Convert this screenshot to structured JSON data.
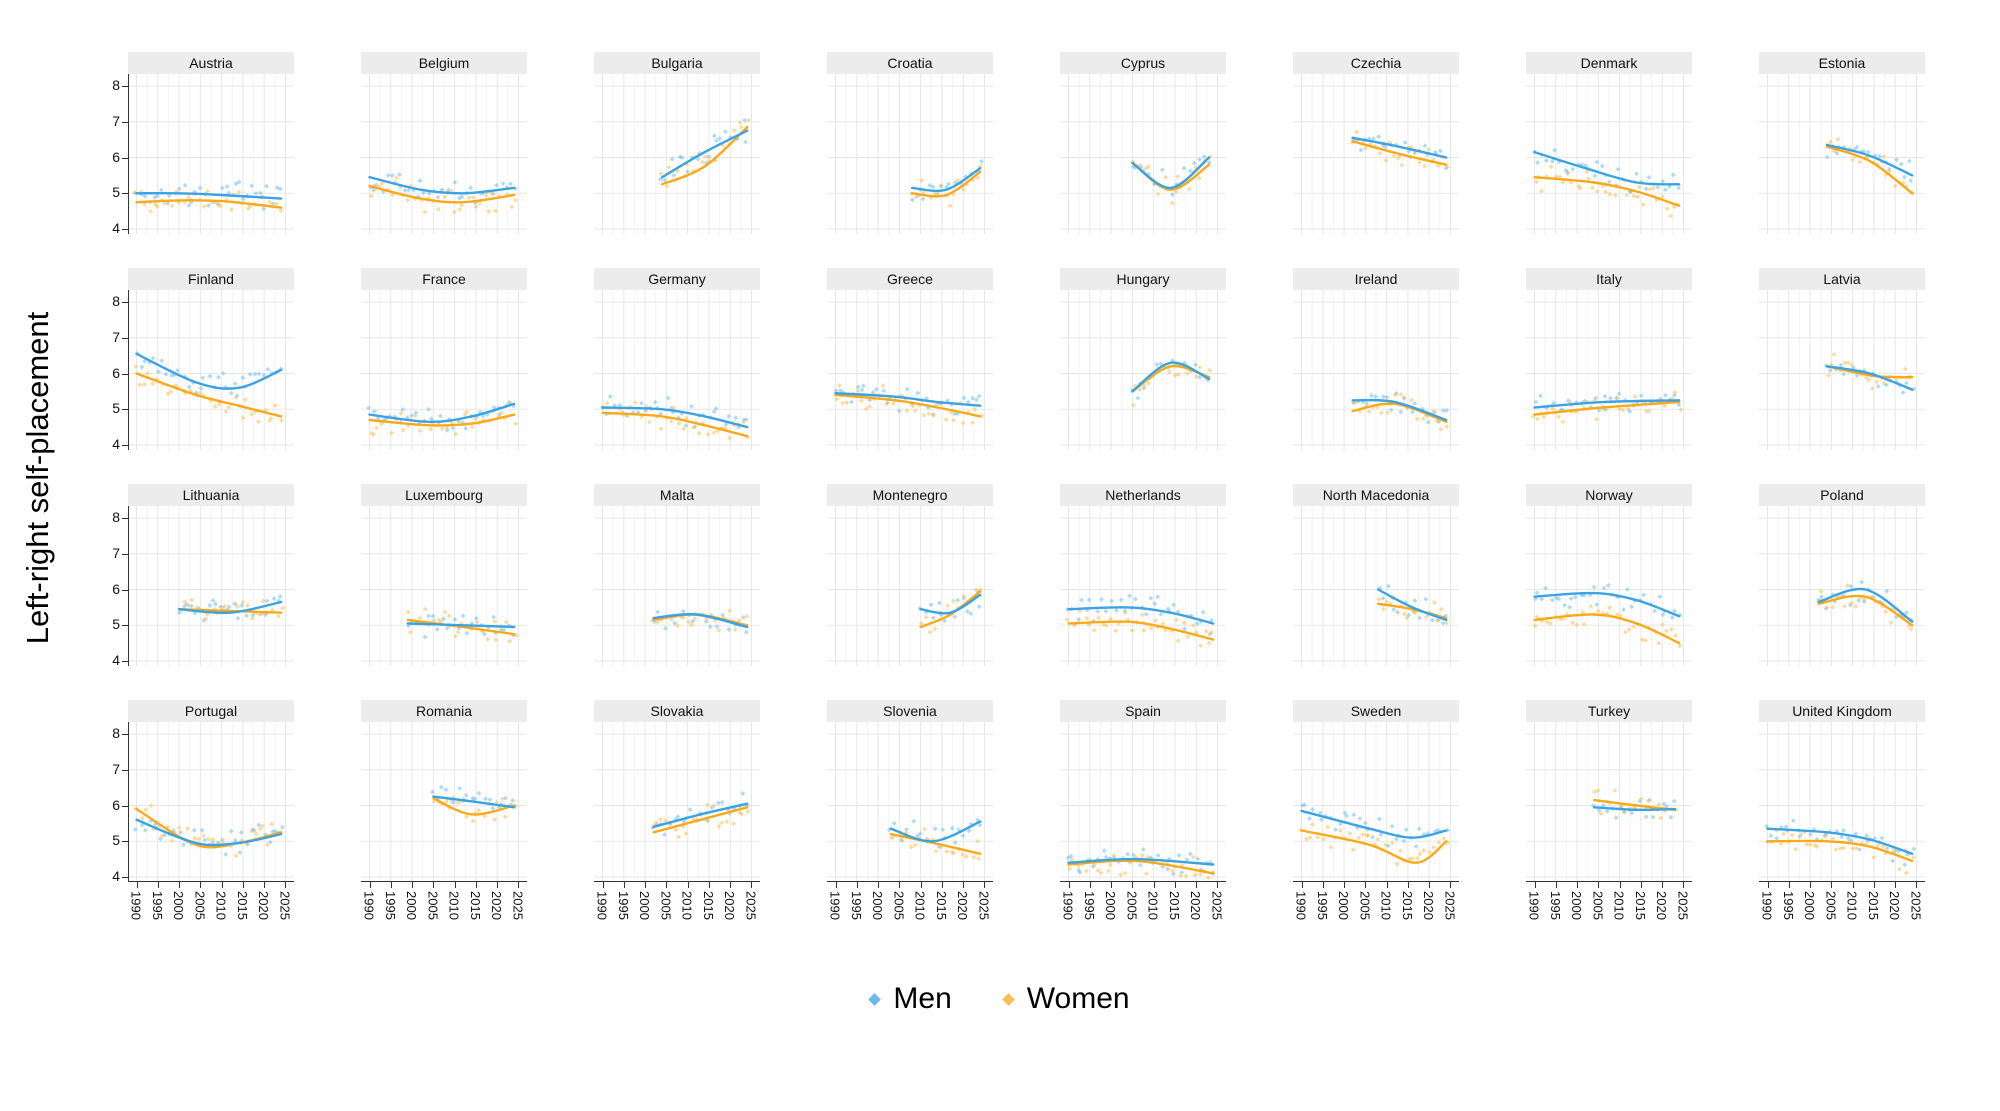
{
  "chart_data": {
    "type": "scatter",
    "smoother": "loess",
    "title": "",
    "xlabel": "",
    "ylabel": "Left-right self-placement",
    "ylim": [
      4,
      8
    ],
    "xlim": [
      1990,
      2025
    ],
    "y_ticks": [
      8,
      7,
      6,
      5,
      4
    ],
    "x_ticks": [
      1990,
      1995,
      2000,
      2005,
      2010,
      2015,
      2020,
      2025
    ],
    "grid": "on",
    "legend_position": "bottom",
    "legend": {
      "men": {
        "label": "Men",
        "color": "#3ba3e3"
      },
      "women": {
        "label": "Women",
        "color": "#fba919"
      }
    },
    "colors": {
      "men_line": "#3ba3e3",
      "women_line": "#fba919",
      "men_point": "#6cbcec",
      "women_point": "#fcbc4d",
      "grid_major": "#e7e7e7",
      "grid_minor": "#f3f3f3",
      "strip_bg": "#ececec",
      "axis": "#333333"
    },
    "facets": [
      {
        "country": "Austria",
        "x_start": 1990,
        "x_end": 2024,
        "men": [
          [
            1990,
            5.0
          ],
          [
            2000,
            5.0
          ],
          [
            2010,
            4.95
          ],
          [
            2024,
            4.85
          ]
        ],
        "women": [
          [
            1990,
            4.75
          ],
          [
            2000,
            4.8
          ],
          [
            2010,
            4.78
          ],
          [
            2024,
            4.6
          ]
        ]
      },
      {
        "country": "Belgium",
        "x_start": 1990,
        "x_end": 2024,
        "men": [
          [
            1990,
            5.45
          ],
          [
            2002,
            5.1
          ],
          [
            2012,
            5.0
          ],
          [
            2024,
            5.15
          ]
        ],
        "women": [
          [
            1990,
            5.2
          ],
          [
            2002,
            4.85
          ],
          [
            2012,
            4.75
          ],
          [
            2024,
            4.95
          ]
        ]
      },
      {
        "country": "Bulgaria",
        "x_start": 2004,
        "x_end": 2024,
        "men": [
          [
            2004,
            5.45
          ],
          [
            2014,
            6.15
          ],
          [
            2024,
            6.75
          ]
        ],
        "women": [
          [
            2004,
            5.25
          ],
          [
            2014,
            5.75
          ],
          [
            2024,
            6.85
          ]
        ]
      },
      {
        "country": "Croatia",
        "x_start": 2008,
        "x_end": 2024,
        "men": [
          [
            2008,
            5.15
          ],
          [
            2016,
            5.1
          ],
          [
            2024,
            5.7
          ]
        ],
        "women": [
          [
            2008,
            5.0
          ],
          [
            2016,
            4.95
          ],
          [
            2024,
            5.6
          ]
        ]
      },
      {
        "country": "Cyprus",
        "x_start": 2005,
        "x_end": 2023,
        "men": [
          [
            2005,
            5.85
          ],
          [
            2014,
            5.15
          ],
          [
            2023,
            6.0
          ]
        ],
        "women": [
          [
            2005,
            5.85
          ],
          [
            2014,
            5.1
          ],
          [
            2023,
            5.8
          ]
        ]
      },
      {
        "country": "Czechia",
        "x_start": 2002,
        "x_end": 2024,
        "men": [
          [
            2002,
            6.55
          ],
          [
            2013,
            6.3
          ],
          [
            2024,
            6.0
          ]
        ],
        "women": [
          [
            2002,
            6.45
          ],
          [
            2013,
            6.1
          ],
          [
            2024,
            5.8
          ]
        ]
      },
      {
        "country": "Denmark",
        "x_start": 1990,
        "x_end": 2024,
        "men": [
          [
            1990,
            6.15
          ],
          [
            2002,
            5.7
          ],
          [
            2014,
            5.3
          ],
          [
            2024,
            5.25
          ]
        ],
        "women": [
          [
            1990,
            5.45
          ],
          [
            2004,
            5.3
          ],
          [
            2014,
            5.05
          ],
          [
            2024,
            4.65
          ]
        ]
      },
      {
        "country": "Estonia",
        "x_start": 2004,
        "x_end": 2024,
        "men": [
          [
            2004,
            6.35
          ],
          [
            2014,
            6.05
          ],
          [
            2024,
            5.5
          ]
        ],
        "women": [
          [
            2004,
            6.3
          ],
          [
            2014,
            5.9
          ],
          [
            2024,
            5.0
          ]
        ]
      },
      {
        "country": "Finland",
        "x_start": 1990,
        "x_end": 2024,
        "men": [
          [
            1990,
            6.55
          ],
          [
            2004,
            5.75
          ],
          [
            2014,
            5.6
          ],
          [
            2024,
            6.1
          ]
        ],
        "women": [
          [
            1990,
            6.0
          ],
          [
            2004,
            5.4
          ],
          [
            2014,
            5.1
          ],
          [
            2024,
            4.8
          ]
        ]
      },
      {
        "country": "France",
        "x_start": 1990,
        "x_end": 2024,
        "men": [
          [
            1990,
            4.85
          ],
          [
            2004,
            4.65
          ],
          [
            2014,
            4.8
          ],
          [
            2024,
            5.15
          ]
        ],
        "women": [
          [
            1990,
            4.7
          ],
          [
            2004,
            4.55
          ],
          [
            2014,
            4.6
          ],
          [
            2024,
            4.85
          ]
        ]
      },
      {
        "country": "Germany",
        "x_start": 1990,
        "x_end": 2024,
        "men": [
          [
            1990,
            5.05
          ],
          [
            2004,
            5.0
          ],
          [
            2014,
            4.8
          ],
          [
            2024,
            4.5
          ]
        ],
        "women": [
          [
            1990,
            4.9
          ],
          [
            2004,
            4.8
          ],
          [
            2014,
            4.55
          ],
          [
            2024,
            4.25
          ]
        ]
      },
      {
        "country": "Greece",
        "x_start": 1990,
        "x_end": 2024,
        "men": [
          [
            1990,
            5.45
          ],
          [
            2004,
            5.35
          ],
          [
            2014,
            5.2
          ],
          [
            2024,
            5.1
          ]
        ],
        "women": [
          [
            1990,
            5.4
          ],
          [
            2004,
            5.25
          ],
          [
            2014,
            5.05
          ],
          [
            2024,
            4.8
          ]
        ]
      },
      {
        "country": "Hungary",
        "x_start": 2005,
        "x_end": 2023,
        "men": [
          [
            2005,
            5.5
          ],
          [
            2014,
            6.3
          ],
          [
            2023,
            5.85
          ]
        ],
        "women": [
          [
            2005,
            5.5
          ],
          [
            2014,
            6.2
          ],
          [
            2023,
            5.9
          ]
        ]
      },
      {
        "country": "Ireland",
        "x_start": 2002,
        "x_end": 2024,
        "men": [
          [
            2002,
            5.25
          ],
          [
            2012,
            5.2
          ],
          [
            2024,
            4.7
          ]
        ],
        "women": [
          [
            2002,
            4.95
          ],
          [
            2012,
            5.15
          ],
          [
            2024,
            4.65
          ]
        ]
      },
      {
        "country": "Italy",
        "x_start": 1990,
        "x_end": 2024,
        "men": [
          [
            1990,
            5.05
          ],
          [
            2006,
            5.2
          ],
          [
            2024,
            5.25
          ]
        ],
        "women": [
          [
            1990,
            4.85
          ],
          [
            2006,
            5.05
          ],
          [
            2024,
            5.2
          ]
        ]
      },
      {
        "country": "Latvia",
        "x_start": 2004,
        "x_end": 2024,
        "men": [
          [
            2004,
            6.2
          ],
          [
            2014,
            6.0
          ],
          [
            2024,
            5.55
          ]
        ],
        "women": [
          [
            2004,
            6.2
          ],
          [
            2014,
            5.95
          ],
          [
            2020,
            5.9
          ],
          [
            2024,
            5.9
          ]
        ]
      },
      {
        "country": "Lithuania",
        "x_start": 2000,
        "x_end": 2024,
        "men": [
          [
            2000,
            5.45
          ],
          [
            2012,
            5.35
          ],
          [
            2024,
            5.65
          ]
        ],
        "women": [
          [
            2000,
            5.45
          ],
          [
            2012,
            5.4
          ],
          [
            2024,
            5.35
          ]
        ]
      },
      {
        "country": "Luxembourg",
        "x_start": 1999,
        "x_end": 2024,
        "men": [
          [
            1999,
            5.05
          ],
          [
            2012,
            5.0
          ],
          [
            2024,
            4.95
          ]
        ],
        "women": [
          [
            1999,
            5.15
          ],
          [
            2012,
            4.95
          ],
          [
            2024,
            4.75
          ]
        ]
      },
      {
        "country": "Malta",
        "x_start": 2002,
        "x_end": 2024,
        "men": [
          [
            2002,
            5.2
          ],
          [
            2012,
            5.3
          ],
          [
            2024,
            4.95
          ]
        ],
        "women": [
          [
            2002,
            5.15
          ],
          [
            2012,
            5.3
          ],
          [
            2024,
            5.0
          ]
        ]
      },
      {
        "country": "Montenegro",
        "x_start": 2010,
        "x_end": 2024,
        "men": [
          [
            2010,
            5.45
          ],
          [
            2017,
            5.35
          ],
          [
            2024,
            5.85
          ]
        ],
        "women": [
          [
            2010,
            4.95
          ],
          [
            2017,
            5.3
          ],
          [
            2024,
            5.95
          ]
        ]
      },
      {
        "country": "Netherlands",
        "x_start": 1990,
        "x_end": 2024,
        "men": [
          [
            1990,
            5.45
          ],
          [
            2004,
            5.5
          ],
          [
            2014,
            5.35
          ],
          [
            2024,
            5.05
          ]
        ],
        "women": [
          [
            1990,
            5.05
          ],
          [
            2004,
            5.1
          ],
          [
            2014,
            4.9
          ],
          [
            2024,
            4.6
          ]
        ]
      },
      {
        "country": "North Macedonia",
        "x_start": 2008,
        "x_end": 2024,
        "men": [
          [
            2008,
            6.0
          ],
          [
            2016,
            5.5
          ],
          [
            2024,
            5.15
          ]
        ],
        "women": [
          [
            2008,
            5.6
          ],
          [
            2016,
            5.45
          ],
          [
            2024,
            5.2
          ]
        ]
      },
      {
        "country": "Norway",
        "x_start": 1990,
        "x_end": 2024,
        "men": [
          [
            1990,
            5.8
          ],
          [
            2004,
            5.9
          ],
          [
            2014,
            5.7
          ],
          [
            2024,
            5.25
          ]
        ],
        "women": [
          [
            1990,
            5.15
          ],
          [
            2004,
            5.3
          ],
          [
            2014,
            5.05
          ],
          [
            2024,
            4.5
          ]
        ]
      },
      {
        "country": "Poland",
        "x_start": 2002,
        "x_end": 2024,
        "men": [
          [
            2002,
            5.65
          ],
          [
            2013,
            6.0
          ],
          [
            2024,
            5.1
          ]
        ],
        "women": [
          [
            2002,
            5.6
          ],
          [
            2013,
            5.8
          ],
          [
            2024,
            5.0
          ]
        ]
      },
      {
        "country": "Portugal",
        "x_start": 1990,
        "x_end": 2024,
        "men": [
          [
            1990,
            5.6
          ],
          [
            2004,
            4.95
          ],
          [
            2014,
            4.95
          ],
          [
            2024,
            5.2
          ]
        ],
        "women": [
          [
            1990,
            5.9
          ],
          [
            2004,
            4.9
          ],
          [
            2014,
            4.95
          ],
          [
            2024,
            5.25
          ]
        ]
      },
      {
        "country": "Romania",
        "x_start": 2005,
        "x_end": 2024,
        "men": [
          [
            2005,
            6.25
          ],
          [
            2015,
            6.1
          ],
          [
            2024,
            5.95
          ]
        ],
        "women": [
          [
            2005,
            6.2
          ],
          [
            2014,
            5.75
          ],
          [
            2024,
            6.0
          ]
        ]
      },
      {
        "country": "Slovakia",
        "x_start": 2002,
        "x_end": 2024,
        "men": [
          [
            2002,
            5.4
          ],
          [
            2013,
            5.75
          ],
          [
            2024,
            6.05
          ]
        ],
        "women": [
          [
            2002,
            5.25
          ],
          [
            2013,
            5.6
          ],
          [
            2024,
            5.95
          ]
        ]
      },
      {
        "country": "Slovenia",
        "x_start": 2003,
        "x_end": 2024,
        "men": [
          [
            2003,
            5.35
          ],
          [
            2013,
            5.0
          ],
          [
            2024,
            5.55
          ]
        ],
        "women": [
          [
            2003,
            5.2
          ],
          [
            2013,
            4.95
          ],
          [
            2024,
            4.65
          ]
        ]
      },
      {
        "country": "Spain",
        "x_start": 1990,
        "x_end": 2024,
        "men": [
          [
            1990,
            4.4
          ],
          [
            2006,
            4.5
          ],
          [
            2024,
            4.35
          ]
        ],
        "women": [
          [
            1990,
            4.35
          ],
          [
            2006,
            4.45
          ],
          [
            2024,
            4.1
          ]
        ]
      },
      {
        "country": "Sweden",
        "x_start": 1990,
        "x_end": 2024,
        "men": [
          [
            1990,
            5.85
          ],
          [
            2006,
            5.35
          ],
          [
            2016,
            5.1
          ],
          [
            2024,
            5.3
          ]
        ],
        "women": [
          [
            1990,
            5.3
          ],
          [
            2006,
            4.9
          ],
          [
            2017,
            4.4
          ],
          [
            2024,
            5.0
          ]
        ]
      },
      {
        "country": "Turkey",
        "x_start": 2004,
        "x_end": 2023,
        "men": [
          [
            2004,
            5.95
          ],
          [
            2014,
            5.88
          ],
          [
            2023,
            5.9
          ]
        ],
        "women": [
          [
            2004,
            6.15
          ],
          [
            2014,
            6.0
          ],
          [
            2023,
            5.88
          ]
        ]
      },
      {
        "country": "United Kingdom",
        "x_start": 1990,
        "x_end": 2024,
        "men": [
          [
            1990,
            5.35
          ],
          [
            2004,
            5.25
          ],
          [
            2014,
            5.05
          ],
          [
            2024,
            4.65
          ]
        ],
        "women": [
          [
            1990,
            5.0
          ],
          [
            2004,
            5.0
          ],
          [
            2014,
            4.85
          ],
          [
            2024,
            4.45
          ]
        ]
      }
    ]
  }
}
